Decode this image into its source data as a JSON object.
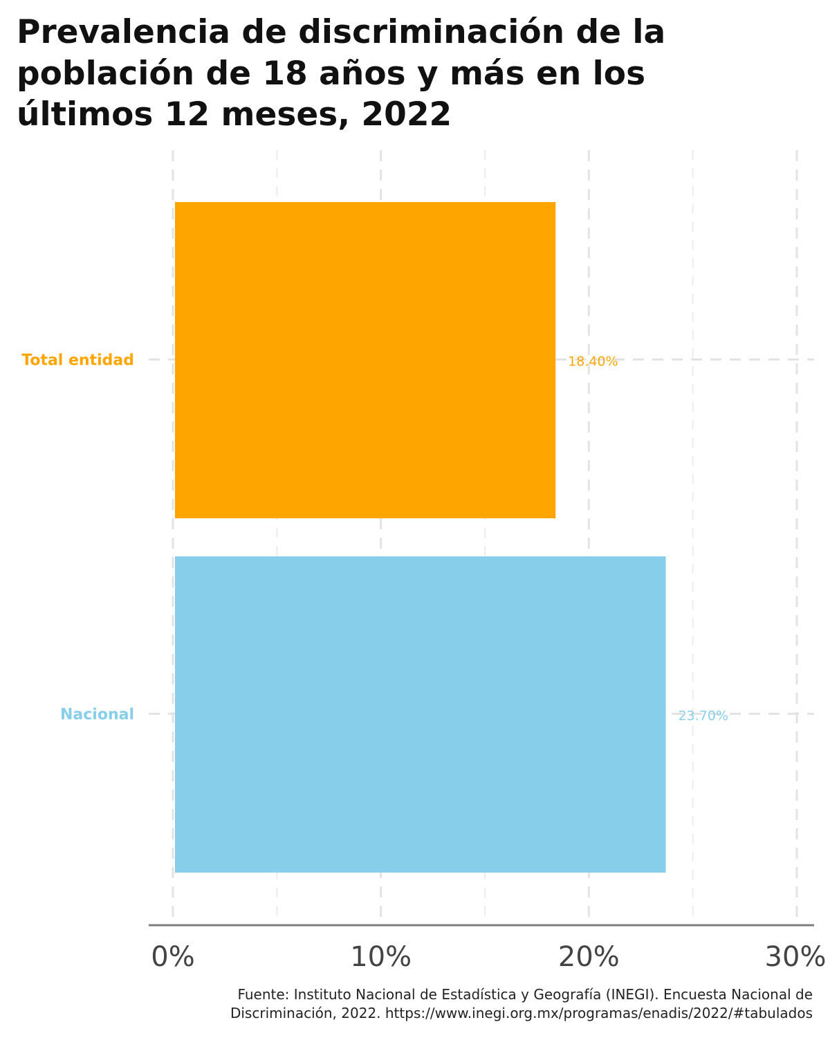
{
  "chart_data": {
    "type": "bar",
    "orientation": "horizontal",
    "title_lines": [
      "Prevalencia de discriminación de la",
      "población de 18 años y más en los",
      "últimos 12 meses, 2022"
    ],
    "categories": [
      "Total entidad",
      "Nacional"
    ],
    "values": [
      18.4,
      23.7
    ],
    "value_labels": [
      "18.40%",
      "23.70%"
    ],
    "colors": [
      "#FFA500",
      "#87CEEB"
    ],
    "xlim": [
      0,
      30
    ],
    "x_ticks": [
      0,
      10,
      20,
      30
    ],
    "x_tick_labels": [
      "0%",
      "10%",
      "20%",
      "30%"
    ],
    "grid": true,
    "grid_style": "dashed",
    "caption_lines": [
      "Fuente: Instituto Nacional de Estadística y Geografía (INEGI). Encuesta Nacional de",
      "Discriminación, 2022. https://www.inegi.org.mx/programas/enadis/2022/#tabulados"
    ]
  }
}
